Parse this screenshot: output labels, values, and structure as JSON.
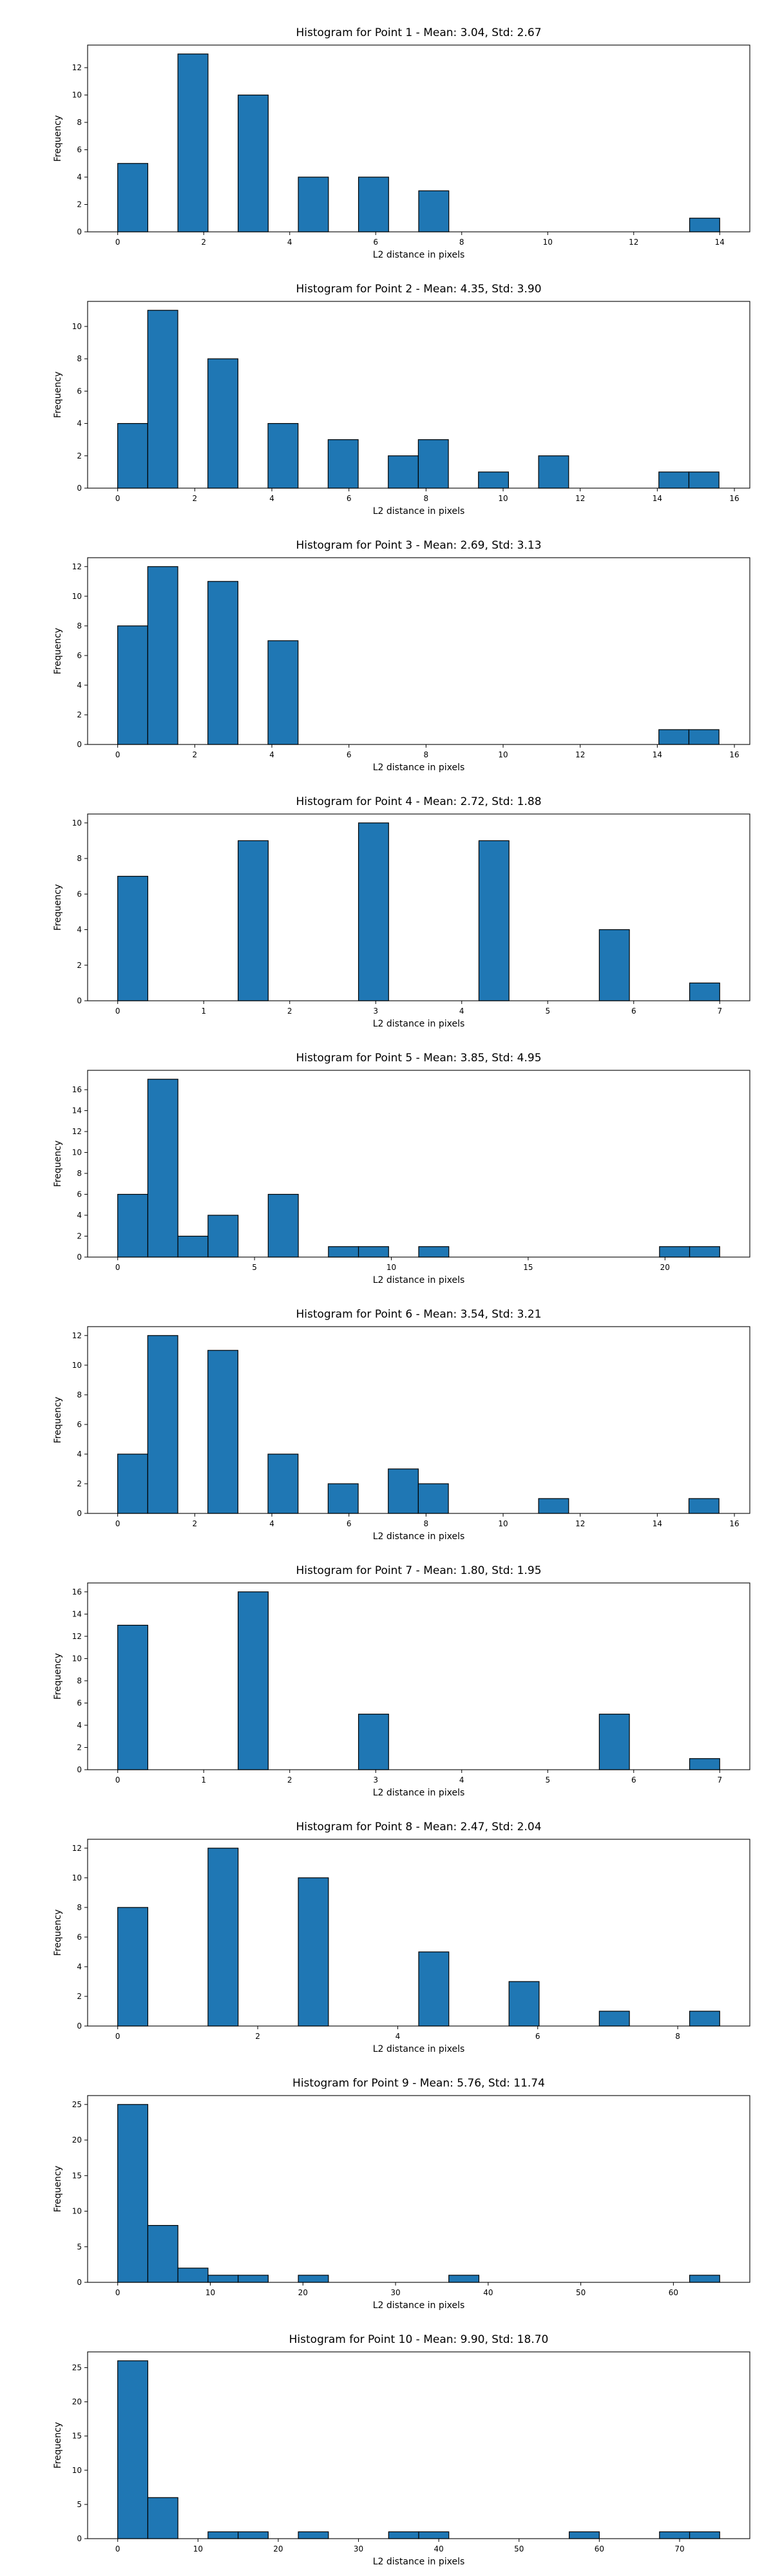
{
  "colors": {
    "bar_fill": "#1f77b4",
    "bar_edge": "#000000",
    "axes": "#000000",
    "background": "#ffffff"
  },
  "chart_data": [
    {
      "type": "bar",
      "title": "Histogram for Point 1 - Mean: 3.04, Std: 2.67",
      "xlabel": "L2 distance in pixels",
      "ylabel": "Frequency",
      "xlim": [
        -0.7,
        14.7
      ],
      "ylim": [
        0,
        13.65
      ],
      "xticks": [
        0,
        2,
        4,
        6,
        8,
        10,
        12,
        14
      ],
      "yticks": [
        0,
        2,
        4,
        6,
        8,
        10,
        12
      ],
      "grid": false,
      "bars": [
        {
          "x0": 0.0,
          "x1": 0.7,
          "count": 5
        },
        {
          "x0": 1.4,
          "x1": 2.1,
          "count": 13
        },
        {
          "x0": 2.8,
          "x1": 3.5,
          "count": 10
        },
        {
          "x0": 4.2,
          "x1": 4.9,
          "count": 4
        },
        {
          "x0": 5.6,
          "x1": 6.3,
          "count": 4
        },
        {
          "x0": 7.0,
          "x1": 7.7,
          "count": 3
        },
        {
          "x0": 13.3,
          "x1": 14.0,
          "count": 1
        }
      ]
    },
    {
      "type": "bar",
      "title": "Histogram for Point 2 - Mean: 4.35, Std: 3.90",
      "xlabel": "L2 distance in pixels",
      "ylabel": "Frequency",
      "xlim": [
        -0.78,
        16.4
      ],
      "ylim": [
        0,
        11.55
      ],
      "xticks": [
        0,
        2,
        4,
        6,
        8,
        10,
        12,
        14,
        16
      ],
      "yticks": [
        0,
        2,
        4,
        6,
        8,
        10
      ],
      "grid": false,
      "bars": [
        {
          "x0": 0.0,
          "x1": 0.78,
          "count": 4
        },
        {
          "x0": 0.78,
          "x1": 1.56,
          "count": 11
        },
        {
          "x0": 2.34,
          "x1": 3.12,
          "count": 8
        },
        {
          "x0": 3.9,
          "x1": 4.68,
          "count": 4
        },
        {
          "x0": 5.46,
          "x1": 6.24,
          "count": 3
        },
        {
          "x0": 7.02,
          "x1": 7.8,
          "count": 2
        },
        {
          "x0": 7.8,
          "x1": 8.58,
          "count": 3
        },
        {
          "x0": 9.36,
          "x1": 10.14,
          "count": 1
        },
        {
          "x0": 10.92,
          "x1": 11.7,
          "count": 2
        },
        {
          "x0": 14.04,
          "x1": 14.82,
          "count": 1
        },
        {
          "x0": 14.82,
          "x1": 15.6,
          "count": 1
        }
      ]
    },
    {
      "type": "bar",
      "title": "Histogram for Point 3 - Mean: 2.69, Std: 3.13",
      "xlabel": "L2 distance in pixels",
      "ylabel": "Frequency",
      "xlim": [
        -0.78,
        16.4
      ],
      "ylim": [
        0,
        12.6
      ],
      "xticks": [
        0,
        2,
        4,
        6,
        8,
        10,
        12,
        14,
        16
      ],
      "yticks": [
        0,
        2,
        4,
        6,
        8,
        10,
        12
      ],
      "grid": false,
      "bars": [
        {
          "x0": 0.0,
          "x1": 0.78,
          "count": 8
        },
        {
          "x0": 0.78,
          "x1": 1.56,
          "count": 12
        },
        {
          "x0": 2.34,
          "x1": 3.12,
          "count": 11
        },
        {
          "x0": 3.9,
          "x1": 4.68,
          "count": 7
        },
        {
          "x0": 14.04,
          "x1": 14.82,
          "count": 1
        },
        {
          "x0": 14.82,
          "x1": 15.6,
          "count": 1
        }
      ]
    },
    {
      "type": "bar",
      "title": "Histogram for Point 4 - Mean: 2.72, Std: 1.88",
      "xlabel": "L2 distance in pixels",
      "ylabel": "Frequency",
      "xlim": [
        -0.35,
        7.35
      ],
      "ylim": [
        0,
        10.5
      ],
      "xticks": [
        0,
        1,
        2,
        3,
        4,
        5,
        6,
        7
      ],
      "yticks": [
        0,
        2,
        4,
        6,
        8,
        10
      ],
      "grid": false,
      "bars": [
        {
          "x0": 0.0,
          "x1": 0.35,
          "count": 7
        },
        {
          "x0": 1.4,
          "x1": 1.75,
          "count": 9
        },
        {
          "x0": 2.8,
          "x1": 3.15,
          "count": 10
        },
        {
          "x0": 4.2,
          "x1": 4.55,
          "count": 9
        },
        {
          "x0": 5.6,
          "x1": 5.95,
          "count": 4
        },
        {
          "x0": 6.65,
          "x1": 7.0,
          "count": 1
        }
      ]
    },
    {
      "type": "bar",
      "title": "Histogram for Point 5 - Mean: 3.85, Std: 4.95",
      "xlabel": "L2 distance in pixels",
      "ylabel": "Frequency",
      "xlim": [
        -1.1,
        23.1
      ],
      "ylim": [
        0,
        17.85
      ],
      "xticks": [
        0,
        5,
        10,
        15,
        20
      ],
      "yticks": [
        0,
        2,
        4,
        6,
        8,
        10,
        12,
        14,
        16
      ],
      "grid": false,
      "bars": [
        {
          "x0": 0.0,
          "x1": 1.1,
          "count": 6
        },
        {
          "x0": 1.1,
          "x1": 2.2,
          "count": 17
        },
        {
          "x0": 2.2,
          "x1": 3.3,
          "count": 2
        },
        {
          "x0": 3.3,
          "x1": 4.4,
          "count": 4
        },
        {
          "x0": 5.5,
          "x1": 6.6,
          "count": 6
        },
        {
          "x0": 7.7,
          "x1": 8.8,
          "count": 1
        },
        {
          "x0": 8.8,
          "x1": 9.9,
          "count": 1
        },
        {
          "x0": 11.0,
          "x1": 12.1,
          "count": 1
        },
        {
          "x0": 19.8,
          "x1": 20.9,
          "count": 1
        },
        {
          "x0": 20.9,
          "x1": 22.0,
          "count": 1
        }
      ]
    },
    {
      "type": "bar",
      "title": "Histogram for Point 6 - Mean: 3.54, Std: 3.21",
      "xlabel": "L2 distance in pixels",
      "ylabel": "Frequency",
      "xlim": [
        -0.78,
        16.4
      ],
      "ylim": [
        0,
        12.6
      ],
      "xticks": [
        0,
        2,
        4,
        6,
        8,
        10,
        12,
        14,
        16
      ],
      "yticks": [
        0,
        2,
        4,
        6,
        8,
        10,
        12
      ],
      "grid": false,
      "bars": [
        {
          "x0": 0.0,
          "x1": 0.78,
          "count": 4
        },
        {
          "x0": 0.78,
          "x1": 1.56,
          "count": 12
        },
        {
          "x0": 2.34,
          "x1": 3.12,
          "count": 11
        },
        {
          "x0": 3.9,
          "x1": 4.68,
          "count": 4
        },
        {
          "x0": 5.46,
          "x1": 6.24,
          "count": 2
        },
        {
          "x0": 7.02,
          "x1": 7.8,
          "count": 3
        },
        {
          "x0": 7.8,
          "x1": 8.58,
          "count": 2
        },
        {
          "x0": 10.92,
          "x1": 11.7,
          "count": 1
        },
        {
          "x0": 14.82,
          "x1": 15.6,
          "count": 1
        }
      ]
    },
    {
      "type": "bar",
      "title": "Histogram for Point 7 - Mean: 1.80, Std: 1.95",
      "xlabel": "L2 distance in pixels",
      "ylabel": "Frequency",
      "xlim": [
        -0.35,
        7.35
      ],
      "ylim": [
        0,
        16.8
      ],
      "xticks": [
        0,
        1,
        2,
        3,
        4,
        5,
        6,
        7
      ],
      "yticks": [
        0,
        2,
        4,
        6,
        8,
        10,
        12,
        14,
        16
      ],
      "grid": false,
      "bars": [
        {
          "x0": 0.0,
          "x1": 0.35,
          "count": 13
        },
        {
          "x0": 1.4,
          "x1": 1.75,
          "count": 16
        },
        {
          "x0": 2.8,
          "x1": 3.15,
          "count": 5
        },
        {
          "x0": 5.6,
          "x1": 5.95,
          "count": 5
        },
        {
          "x0": 6.65,
          "x1": 7.0,
          "count": 1
        }
      ]
    },
    {
      "type": "bar",
      "title": "Histogram for Point 8 - Mean: 2.47, Std: 2.04",
      "xlabel": "L2 distance in pixels",
      "ylabel": "Frequency",
      "xlim": [
        -0.43,
        9.03
      ],
      "ylim": [
        0,
        12.6
      ],
      "xticks": [
        0,
        2,
        4,
        6,
        8
      ],
      "yticks": [
        0,
        2,
        4,
        6,
        8,
        10,
        12
      ],
      "grid": false,
      "bars": [
        {
          "x0": 0.0,
          "x1": 0.43,
          "count": 8
        },
        {
          "x0": 1.29,
          "x1": 1.72,
          "count": 12
        },
        {
          "x0": 2.58,
          "x1": 3.01,
          "count": 10
        },
        {
          "x0": 4.3,
          "x1": 4.73,
          "count": 5
        },
        {
          "x0": 5.59,
          "x1": 6.02,
          "count": 3
        },
        {
          "x0": 6.88,
          "x1": 7.31,
          "count": 1
        },
        {
          "x0": 8.17,
          "x1": 8.6,
          "count": 1
        }
      ]
    },
    {
      "type": "bar",
      "title": "Histogram for Point 9 - Mean: 5.76, Std: 11.74",
      "xlabel": "L2 distance in pixels",
      "ylabel": "Frequency",
      "xlim": [
        -3.25,
        68.25
      ],
      "ylim": [
        0,
        26.25
      ],
      "xticks": [
        0,
        10,
        20,
        30,
        40,
        50,
        60
      ],
      "yticks": [
        0,
        5,
        10,
        15,
        20,
        25
      ],
      "grid": false,
      "bars": [
        {
          "x0": 0.0,
          "x1": 3.25,
          "count": 25
        },
        {
          "x0": 3.25,
          "x1": 6.5,
          "count": 8
        },
        {
          "x0": 6.5,
          "x1": 9.75,
          "count": 2
        },
        {
          "x0": 9.75,
          "x1": 13.0,
          "count": 1
        },
        {
          "x0": 13.0,
          "x1": 16.25,
          "count": 1
        },
        {
          "x0": 19.5,
          "x1": 22.75,
          "count": 1
        },
        {
          "x0": 35.75,
          "x1": 39.0,
          "count": 1
        },
        {
          "x0": 61.75,
          "x1": 65.0,
          "count": 1
        }
      ]
    },
    {
      "type": "bar",
      "title": "Histogram for Point 10 - Mean: 9.90, Std: 18.70",
      "xlabel": "L2 distance in pixels",
      "ylabel": "Frequency",
      "xlim": [
        -3.75,
        78.75
      ],
      "ylim": [
        0,
        27.3
      ],
      "xticks": [
        0,
        10,
        20,
        30,
        40,
        50,
        60,
        70
      ],
      "yticks": [
        0,
        5,
        10,
        15,
        20,
        25
      ],
      "grid": false,
      "bars": [
        {
          "x0": 0.0,
          "x1": 3.75,
          "count": 26
        },
        {
          "x0": 3.75,
          "x1": 7.5,
          "count": 6
        },
        {
          "x0": 11.25,
          "x1": 15.0,
          "count": 1
        },
        {
          "x0": 15.0,
          "x1": 18.75,
          "count": 1
        },
        {
          "x0": 22.5,
          "x1": 26.25,
          "count": 1
        },
        {
          "x0": 33.75,
          "x1": 37.5,
          "count": 1
        },
        {
          "x0": 37.5,
          "x1": 41.25,
          "count": 1
        },
        {
          "x0": 56.25,
          "x1": 60.0,
          "count": 1
        },
        {
          "x0": 67.5,
          "x1": 71.25,
          "count": 1
        },
        {
          "x0": 71.25,
          "x1": 75.0,
          "count": 1
        }
      ]
    }
  ]
}
